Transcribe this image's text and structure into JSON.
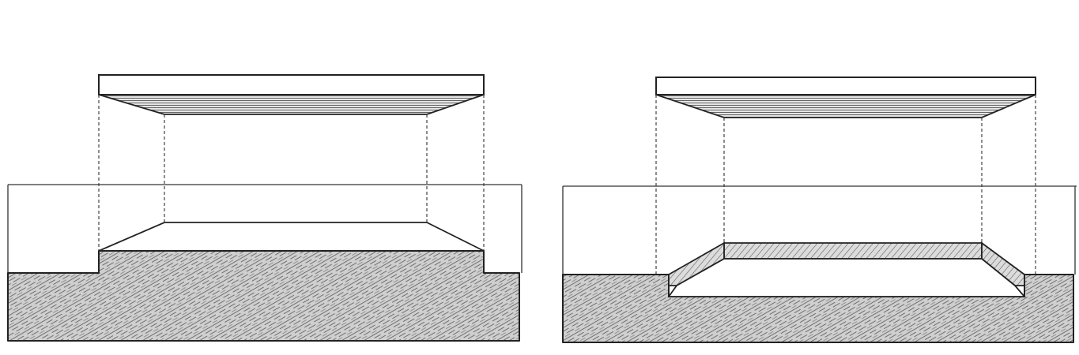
{
  "figure": {
    "panels": [
      {
        "id": "left",
        "depiction": "raised-platform"
      },
      {
        "id": "right",
        "depiction": "sunken-platform"
      }
    ],
    "colors": {
      "line": "#222222",
      "hatch": "#555555",
      "background": "#ffffff"
    }
  }
}
